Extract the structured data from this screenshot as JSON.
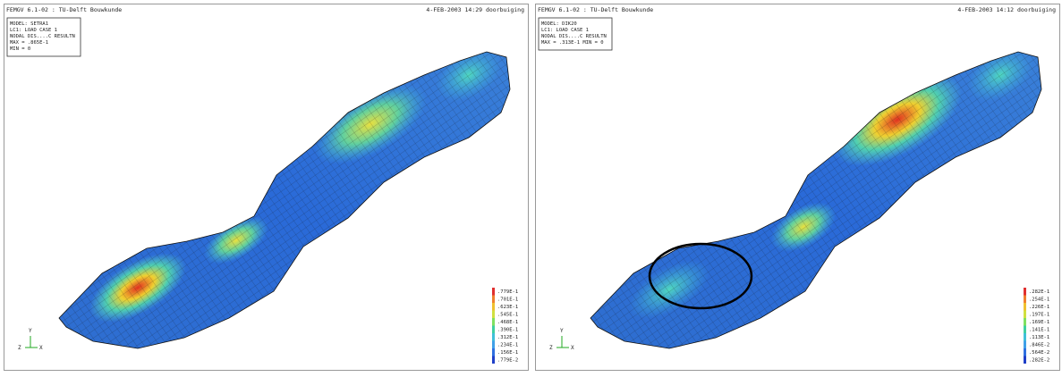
{
  "panels": [
    {
      "header_left": "FEMGV 6.1-02 : TU-Delft Bouwkunde",
      "header_right": "4-FEB-2003 14:29 doorbuiging",
      "info": [
        "MODEL: SETRA1",
        "LC1: LOAD CASE 1",
        "NODAL DIS....C RESULTN",
        "MAX = .865E-1",
        "MIN = 0"
      ],
      "legend": [
        ".779E-1",
        ".701E-1",
        ".623E-1",
        ".545E-1",
        ".468E-1",
        ".390E-1",
        ".312E-1",
        ".234E-1",
        ".156E-1",
        ".779E-2"
      ],
      "axes": [
        "Y",
        "Z",
        "X"
      ]
    },
    {
      "header_left": "FEMGV 6.1-02 : TU-Delft Bouwkunde",
      "header_right": "4-FEB-2003 14:12 doorbuiging",
      "info": [
        "MODEL: DIK20",
        "LC1: LOAD CASE 1",
        "NODAL DIS....C RESULTN",
        "MAX = .313E-1  MIN = 0"
      ],
      "legend": [
        ".282E-1",
        ".254E-1",
        ".226E-1",
        ".197E-1",
        ".169E-1",
        ".141E-1",
        ".113E-1",
        ".846E-2",
        ".564E-2",
        ".282E-2"
      ],
      "axes": [
        "Y",
        "Z",
        "X"
      ]
    }
  ]
}
